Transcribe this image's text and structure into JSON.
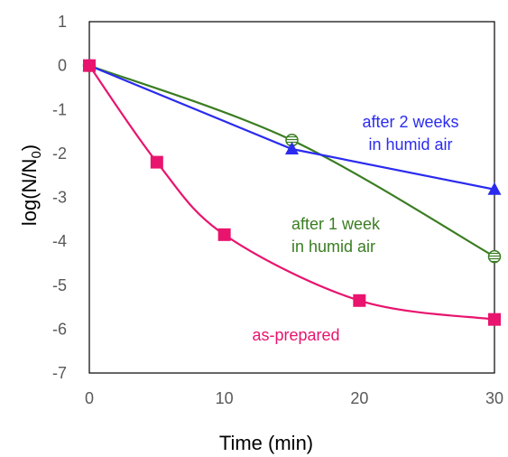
{
  "chart_data": {
    "type": "line",
    "xlabel": "Time (min)",
    "ylabel_main": "log(N/N",
    "ylabel_sub": "0",
    "ylabel_tail": ")",
    "xlim": [
      0,
      30
    ],
    "ylim": [
      -7,
      1
    ],
    "xticks": [
      0,
      10,
      20,
      30
    ],
    "yticks": [
      1,
      0,
      -1,
      -2,
      -3,
      -4,
      -5,
      -6,
      -7
    ],
    "grid": false,
    "legend": "none",
    "series": [
      {
        "key": "as-prepared",
        "name": "as-prepared",
        "color": "#e8146e",
        "marker": "square",
        "x": [
          0,
          5,
          10,
          20,
          30
        ],
        "y": [
          0,
          -2.2,
          -3.85,
          -5.35,
          -5.78
        ]
      },
      {
        "key": "one-week",
        "name": "after 1 week in humid air",
        "color": "#3a7d22",
        "marker": "circle-hatched",
        "x": [
          0,
          15,
          30
        ],
        "y": [
          0,
          -1.7,
          -4.35
        ]
      },
      {
        "key": "two-weeks",
        "name": "after 2 weeks in humid air",
        "color": "#2b2bf0",
        "marker": "triangle",
        "x": [
          0,
          15,
          30
        ],
        "y": [
          0,
          -1.9,
          -2.82
        ]
      }
    ],
    "annotations": [
      {
        "key": "two-weeks",
        "lines": [
          "after 2 weeks",
          "in humid air"
        ],
        "color": "#2b2bf0"
      },
      {
        "key": "one-week",
        "lines": [
          "after 1 week",
          "in humid air"
        ],
        "color": "#3a7d22"
      },
      {
        "key": "as-prepared",
        "lines": [
          "as-prepared"
        ],
        "color": "#e8146e"
      }
    ]
  }
}
